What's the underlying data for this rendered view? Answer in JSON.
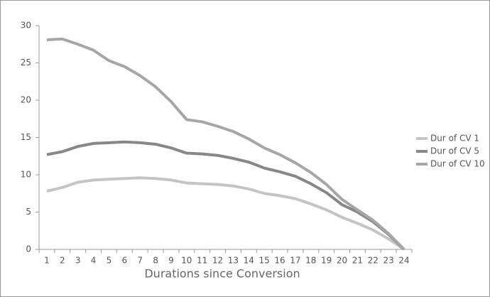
{
  "chart_data": {
    "type": "line",
    "x_label": "Durations since Conversion",
    "categories": [
      "1",
      "2",
      "3",
      "4",
      "5",
      "6",
      "7",
      "8",
      "9",
      "10",
      "11",
      "12",
      "13",
      "14",
      "15",
      "16",
      "17",
      "18",
      "19",
      "20",
      "21",
      "22",
      "23",
      "24"
    ],
    "series": [
      {
        "name": "Dur of CV 1",
        "color": "#c4c4c4",
        "values": [
          7.8,
          8.3,
          9.0,
          9.3,
          9.4,
          9.5,
          9.6,
          9.5,
          9.3,
          8.9,
          8.8,
          8.7,
          8.5,
          8.1,
          7.5,
          7.2,
          6.8,
          6.1,
          5.3,
          4.3,
          3.5,
          2.6,
          1.4,
          0
        ]
      },
      {
        "name": "Dur of CV 5",
        "color": "#878787",
        "values": [
          12.7,
          13.1,
          13.8,
          14.2,
          14.3,
          14.4,
          14.3,
          14.1,
          13.6,
          12.9,
          12.8,
          12.6,
          12.2,
          11.7,
          10.9,
          10.4,
          9.8,
          8.8,
          7.6,
          6.0,
          5.0,
          3.7,
          2.0,
          0
        ]
      },
      {
        "name": "Dur of CV 10",
        "color": "#a6a6a6",
        "values": [
          28.1,
          28.2,
          27.5,
          26.7,
          25.3,
          24.5,
          23.3,
          21.8,
          19.8,
          17.4,
          17.1,
          16.5,
          15.8,
          14.8,
          13.6,
          12.7,
          11.6,
          10.3,
          8.7,
          6.7,
          5.3,
          3.9,
          2.1,
          0
        ]
      }
    ],
    "ylim": [
      0,
      30
    ],
    "yticks": [
      0,
      5,
      10,
      15,
      20,
      25,
      30
    ],
    "grid": false,
    "legend": "right"
  }
}
